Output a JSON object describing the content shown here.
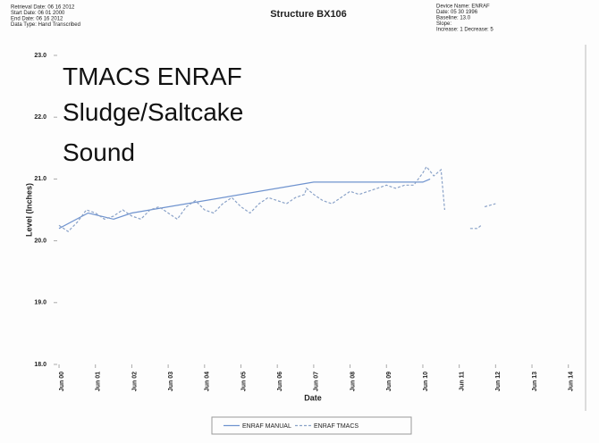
{
  "header": {
    "left": [
      "Retrieval Date: 06 16 2012",
      "Start Date: 06 01 2000",
      "End Date: 06 16 2012",
      "Data Type: Hand Transcribed"
    ],
    "right": [
      "Device Name: ENRAF",
      "Date: 05 30 1996",
      "Baseline: 13.0",
      "Slope:",
      "Increase: 1  Decrease: 5"
    ]
  },
  "chart_data": {
    "type": "line",
    "title": "Structure BX106",
    "annotations": [
      "TMACS ENRAF",
      "Sludge/Saltcake",
      "Sound"
    ],
    "x_label": "Date",
    "y_label": "Level (Inches)",
    "xlim": [
      1999.95,
      2014.4
    ],
    "xticks": [
      {
        "value": 2000,
        "label": "Jun 00"
      },
      {
        "value": 2001,
        "label": "Jun 01"
      },
      {
        "value": 2002,
        "label": "Jun 02"
      },
      {
        "value": 2003,
        "label": "Jun 03"
      },
      {
        "value": 2004,
        "label": "Jun 04"
      },
      {
        "value": 2005,
        "label": "Jun 05"
      },
      {
        "value": 2006,
        "label": "Jun 06"
      },
      {
        "value": 2007,
        "label": "Jun 07"
      },
      {
        "value": 2008,
        "label": "Jun 08"
      },
      {
        "value": 2009,
        "label": "Jun 09"
      },
      {
        "value": 2010,
        "label": "Jun 10"
      },
      {
        "value": 2011,
        "label": "Jun 11"
      },
      {
        "value": 2012,
        "label": "Jun 12"
      },
      {
        "value": 2013,
        "label": "Jun 13"
      },
      {
        "value": 2014,
        "label": "Jun 14"
      }
    ],
    "ylim": [
      18,
      23
    ],
    "yticks": [
      {
        "value": 18,
        "label": "18.0"
      },
      {
        "value": 19,
        "label": "19.0"
      },
      {
        "value": 20,
        "label": "20.0"
      },
      {
        "value": 21,
        "label": "21.0"
      },
      {
        "value": 22,
        "label": "22.0"
      },
      {
        "value": 23,
        "label": "23.0"
      }
    ],
    "series": [
      {
        "name": "ENRAF MANUAL",
        "color": "#6f93cf",
        "dashed": false,
        "x": [
          2000,
          2000.8,
          2001.5,
          2002,
          2007,
          2010,
          2010.2
        ],
        "values": [
          20.2,
          20.45,
          20.35,
          20.45,
          20.95,
          20.95,
          21.0
        ]
      },
      {
        "name": "ENRAF TMACS",
        "color": "#8aa2c8",
        "dashed": true,
        "x": [
          2000,
          2000.25,
          2000.5,
          2000.75,
          2001,
          2001.25,
          2001.5,
          2001.75,
          2002,
          2002.25,
          2002.5,
          2002.75,
          2003,
          2003.25,
          2003.5,
          2003.75,
          2004,
          2004.25,
          2004.5,
          2004.75,
          2005,
          2005.25,
          2005.5,
          2005.75,
          2006,
          2006.25,
          2006.5,
          2006.75,
          2006.8,
          2007,
          2007.25,
          2007.5,
          2007.75,
          2008,
          2008.25,
          2008.5,
          2008.75,
          2009,
          2009.25,
          2009.5,
          2009.75,
          2010,
          2010.1,
          2010.3,
          2010.5,
          2010.6,
          2011,
          2011.3,
          2011.5,
          2011.6,
          2011.65,
          2011.7,
          2012
        ],
        "values": [
          20.25,
          20.15,
          20.3,
          20.5,
          20.45,
          20.35,
          20.4,
          20.5,
          20.4,
          20.35,
          20.5,
          20.55,
          20.45,
          20.35,
          20.55,
          20.65,
          20.5,
          20.45,
          20.6,
          20.7,
          20.55,
          20.45,
          20.6,
          20.7,
          20.65,
          20.6,
          20.7,
          20.75,
          20.85,
          20.75,
          20.65,
          20.6,
          20.7,
          20.8,
          20.75,
          20.8,
          20.85,
          20.9,
          20.85,
          20.9,
          20.9,
          21.1,
          21.2,
          21.05,
          21.15,
          20.5,
          null,
          20.2,
          20.2,
          20.25,
          null,
          20.55,
          20.6
        ]
      }
    ]
  }
}
